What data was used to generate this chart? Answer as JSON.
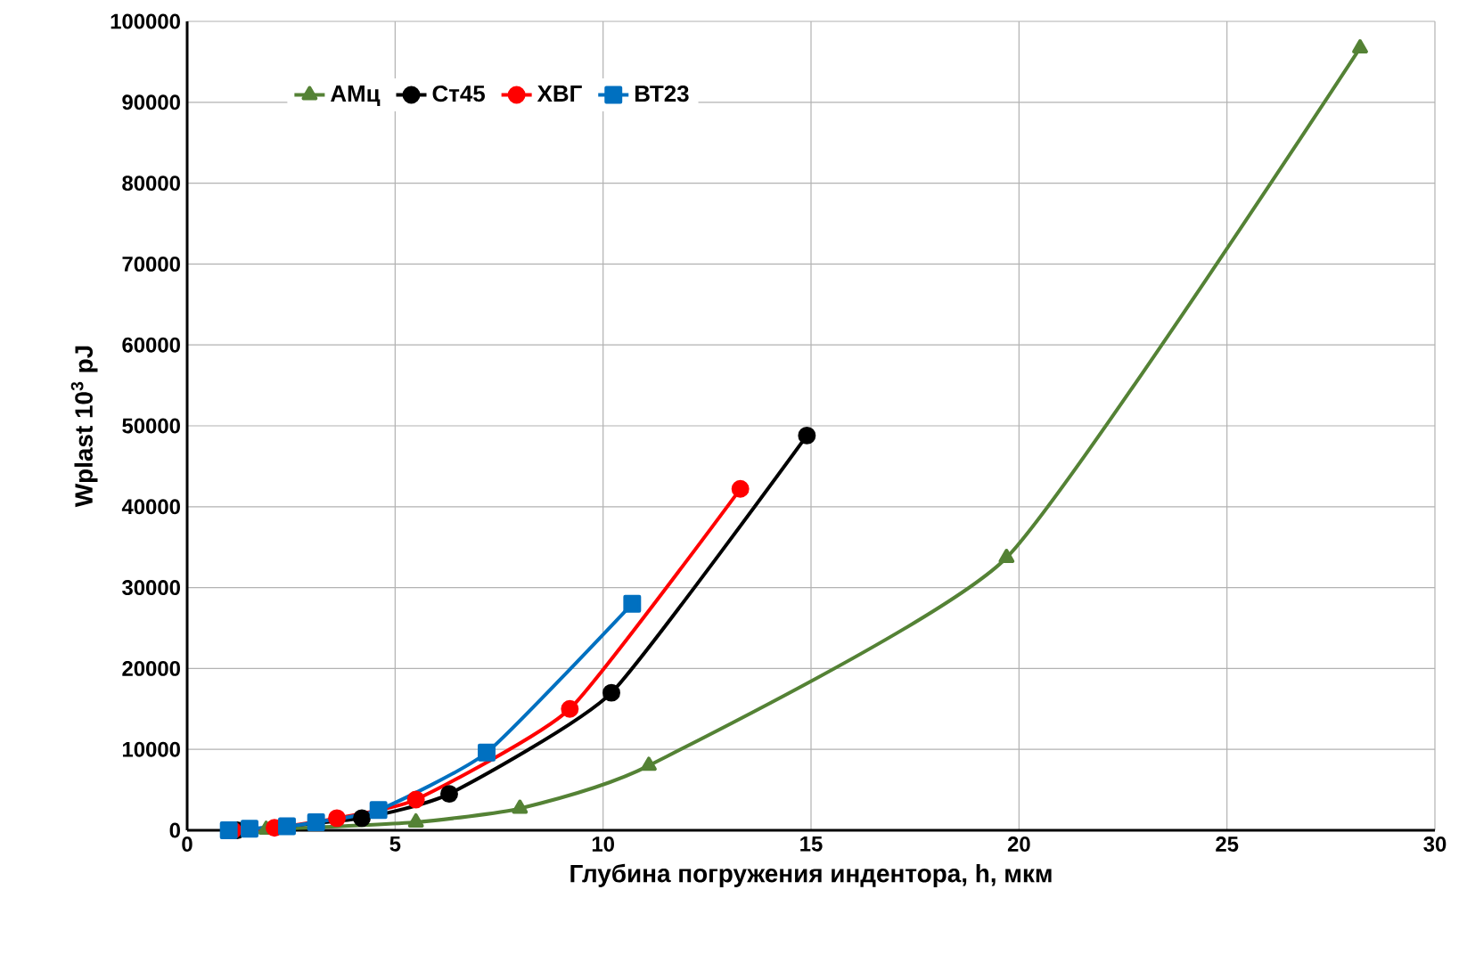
{
  "chart_data": {
    "type": "line",
    "xlabel": "Глубина погружения индентора, h, мкм",
    "ylabel": "Wplast 10$^{3}$ pJ",
    "xlim": [
      0,
      30
    ],
    "xticks": [
      0,
      5,
      10,
      15,
      20,
      25,
      30
    ],
    "ylim": [
      0,
      100000
    ],
    "yticks": [
      0,
      10000,
      20000,
      30000,
      40000,
      50000,
      60000,
      70000,
      80000,
      90000,
      100000
    ],
    "grid": true,
    "legend": "top left",
    "line_style": "solid",
    "series": [
      {
        "name": "АМц",
        "color": "#548235",
        "marker": "triangle",
        "x": [
          1.0,
          1.9,
          3.0,
          5.5,
          8.0,
          11.1,
          19.7,
          28.2
        ],
        "values": [
          0,
          100,
          null,
          1000,
          2700,
          8000,
          33700,
          96700
        ]
      },
      {
        "name": "Ст45",
        "color": "#000000",
        "marker": "circle",
        "x": [
          1.2,
          2.5,
          4.2,
          6.3,
          10.2,
          14.9
        ],
        "values": [
          0,
          null,
          1500,
          4500,
          17000,
          48800
        ]
      },
      {
        "name": "ХВГ",
        "color": "#ff0000",
        "marker": "circle",
        "x": [
          1.1,
          2.1,
          3.6,
          5.5,
          9.2,
          13.3
        ],
        "values": [
          0,
          300,
          1500,
          3800,
          15000,
          42200
        ]
      },
      {
        "name": "ВТ23",
        "color": "#0070c0",
        "marker": "square",
        "x": [
          1.0,
          1.5,
          2.4,
          3.1,
          4.6,
          7.2,
          10.7
        ],
        "values": [
          0,
          200,
          500,
          1000,
          2500,
          9600,
          28000
        ]
      }
    ]
  }
}
